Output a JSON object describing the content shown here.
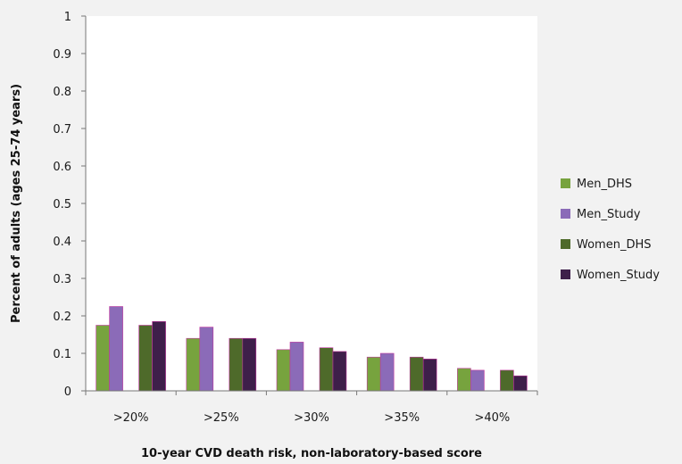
{
  "chart_data": {
    "type": "bar",
    "categories": [
      ">20%",
      ">25%",
      ">30%",
      ">35%",
      ">40%"
    ],
    "series": [
      {
        "name": "Men_DHS",
        "values": [
          0.175,
          0.14,
          0.11,
          0.09,
          0.06
        ],
        "color": "#77a33e"
      },
      {
        "name": "Men_Study",
        "values": [
          0.225,
          0.17,
          0.13,
          0.1,
          0.055
        ],
        "color": "#8b6bb8"
      },
      {
        "name": "Women_DHS",
        "values": [
          0.175,
          0.14,
          0.115,
          0.09,
          0.055
        ],
        "color": "#4e6a2a"
      },
      {
        "name": "Women_Study",
        "values": [
          0.185,
          0.14,
          0.105,
          0.085,
          0.04
        ],
        "color": "#3e1f4a"
      }
    ],
    "xlabel": "10-year CVD death risk, non-laboratory-based score",
    "ylabel": "Percent of adults (ages 25-74 years)",
    "ylim": [
      0,
      1
    ],
    "yticks": [
      "0",
      "0.1",
      "0.2",
      "0.3",
      "0.4",
      "0.5",
      "0.6",
      "0.7",
      "0.8",
      "0.9",
      "1"
    ],
    "grid": false,
    "legend_position": "right",
    "colors": {
      "plot_background": "#ffffff",
      "chart_background": "#f2f2f2",
      "axis": "#777777",
      "bar_border": "#c0379f"
    }
  }
}
